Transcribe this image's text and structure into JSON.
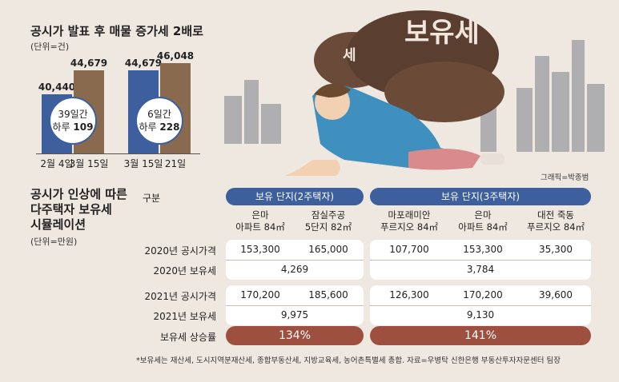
{
  "top_chart": {
    "title": "공시가 발표 후 매물 증가세 2배로",
    "unit": "(단위=건)",
    "chart_data": {
      "type": "bar",
      "categories": [
        "2월 4일",
        "3월 15일",
        "3월 15일",
        "21일"
      ],
      "values": [
        40440,
        44679,
        44679,
        46048
      ],
      "value_labels": [
        "40,440",
        "44,679",
        "44,679",
        "46,048"
      ],
      "bar_colors": [
        "#3d5f9e",
        "#8a6a4f",
        "#3d5f9e",
        "#8a6a4f"
      ],
      "groups": [
        {
          "note_line1": "39일간",
          "note_line2": "하루",
          "note_value": "109"
        },
        {
          "note_line1": "6일간",
          "note_line2": "하루",
          "note_value": "228"
        }
      ]
    }
  },
  "illustration": {
    "bag_label": "보유세",
    "bag_label_small": "세",
    "credit": "그래픽=박종범"
  },
  "table": {
    "title_lines": [
      "공시가 인상에 따른",
      "다주택자 보유세",
      "시뮬레이션"
    ],
    "unit": "(단위=만원)",
    "category_header": "구분",
    "group1_header": "보유 단지(2주택자)",
    "group2_header": "보유 단지(3주택자)",
    "columns": [
      {
        "l1": "은마",
        "l2": "아파트 84㎡"
      },
      {
        "l1": "잠실주공",
        "l2": "5단지 82㎡"
      },
      {
        "l1": "마포래미안",
        "l2": "푸르지오 84㎡"
      },
      {
        "l1": "은마",
        "l2": "아파트 84㎡"
      },
      {
        "l1": "대전 죽동",
        "l2": "푸르지오 84㎡"
      }
    ],
    "rows": {
      "r2020_price_label": "2020년 공시가격",
      "r2020_price": [
        "153,300",
        "165,000",
        "107,700",
        "153,300",
        "35,300"
      ],
      "r2020_tax_label": "2020년 보유세",
      "r2020_tax": [
        "4,269",
        "3,784"
      ],
      "r2021_price_label": "2021년 공시가격",
      "r2021_price": [
        "170,200",
        "185,600",
        "126,300",
        "170,200",
        "39,600"
      ],
      "r2021_tax_label": "2021년 보유세",
      "r2021_tax": [
        "9,975",
        "9,130"
      ],
      "increase_label": "보유세 상승률",
      "increase": [
        "134%",
        "141%"
      ]
    },
    "footnote": "*보유세는 재산세, 도시지역분재산세, 종합부동산세, 지방교육세, 농어촌특별세 총합. 자료=우병탁 신한은행 부동산투자자문센터 팀장"
  }
}
